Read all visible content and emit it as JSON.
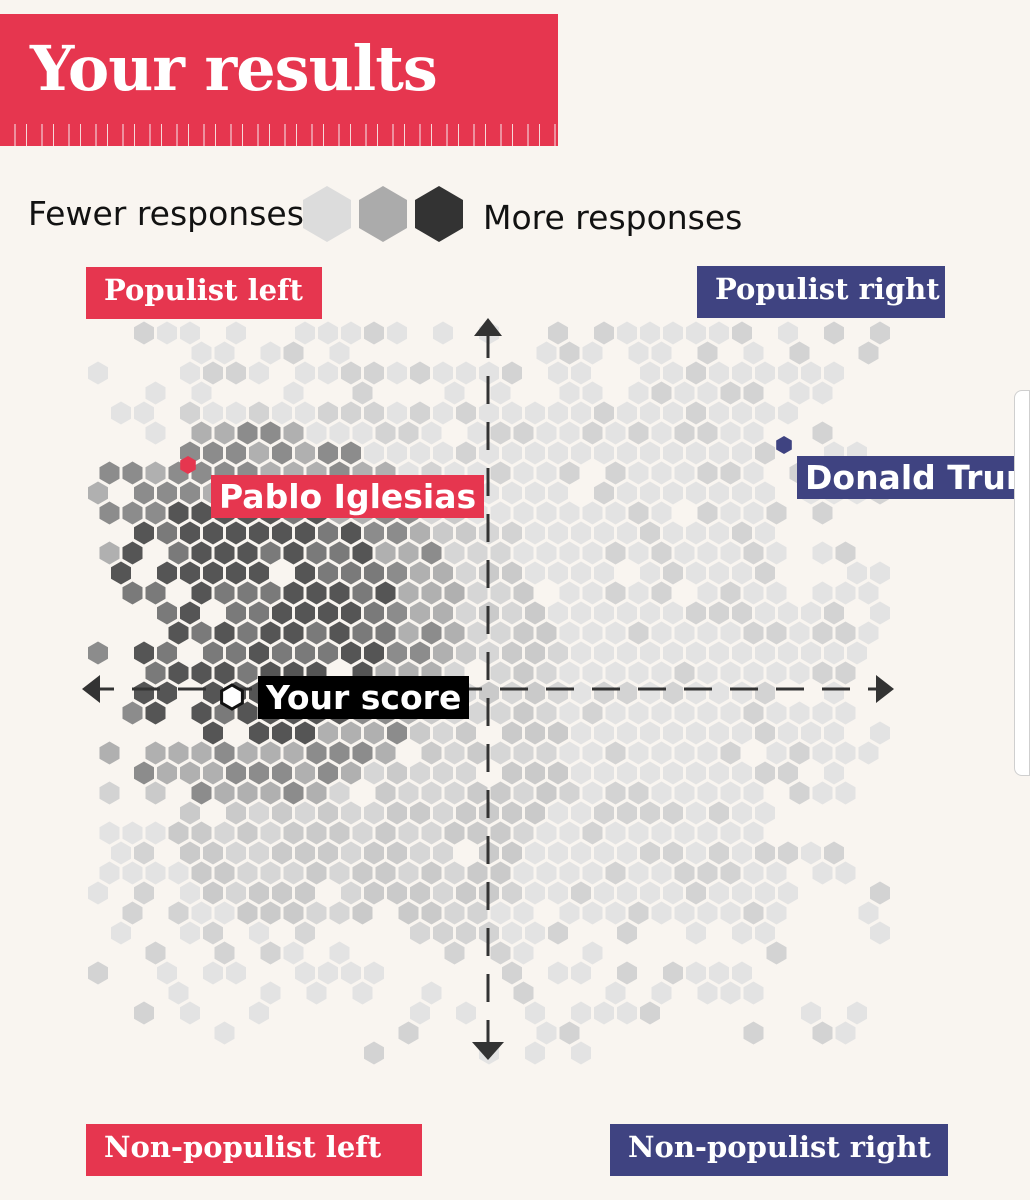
{
  "title": "Your results",
  "legend": {
    "fewer_label": "Fewer responses",
    "more_label": "More responses",
    "swatches": [
      "#dcdcdc",
      "#ababab",
      "#333333"
    ]
  },
  "quadrants": {
    "top_left": "Populist left",
    "top_right": "Populist right",
    "bottom_left": "Non-populist left",
    "bottom_right": "Non-populist right"
  },
  "colors": {
    "accent_red": "#e6364f",
    "accent_navy": "#3f4381",
    "background": "#f9f5f0"
  },
  "chart_data": {
    "type": "hexbin-scatter",
    "xlabel": "",
    "ylabel": "",
    "x_axis": {
      "left": "left",
      "right": "right"
    },
    "y_axis": {
      "top": "populist",
      "bottom": "non-populist"
    },
    "density_levels": [
      "fewer",
      "more"
    ],
    "markers": [
      {
        "name": "Pablo Iglesias",
        "color": "#e6364f",
        "x": -0.75,
        "y": 0.56
      },
      {
        "name": "Donald Trump",
        "color": "#3f4381",
        "x": 0.74,
        "y": 0.61
      },
      {
        "name": "Your score",
        "color": "#ffffff",
        "x": -0.64,
        "y": -0.02
      }
    ]
  }
}
